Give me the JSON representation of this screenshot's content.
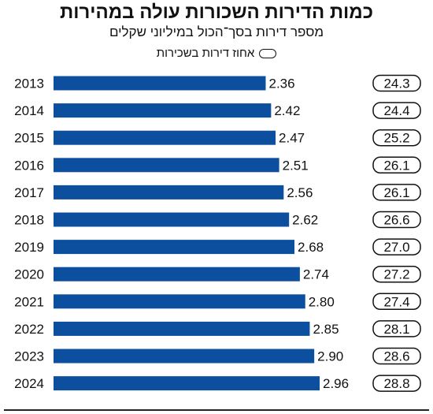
{
  "header": {
    "title": "כמות הדירות השכורות עולה במהירות",
    "subtitle": "מספר דירות בסך־הכול במיליוני שקלים",
    "legend_label": "אחוז דירות בשכירות"
  },
  "colors": {
    "bar": "#0b4f9e",
    "text": "#111111"
  },
  "chart_data": {
    "type": "bar",
    "orientation": "horizontal",
    "title": "כמות הדירות השכורות עולה במהירות",
    "subtitle": "מספר דירות בסך־הכול במיליוני שקלים",
    "categories": [
      "2013",
      "2014",
      "2015",
      "2016",
      "2017",
      "2018",
      "2019",
      "2020",
      "2021",
      "2022",
      "2023",
      "2024"
    ],
    "series": [
      {
        "values": [
          2.36,
          2.42,
          2.47,
          2.51,
          2.56,
          2.62,
          2.68,
          2.74,
          2.8,
          2.85,
          2.9,
          2.96
        ],
        "labels": [
          "2.36",
          "2.42",
          "2.47",
          "2.51",
          "2.56",
          "2.62",
          "2.68",
          "2.74",
          "2.80",
          "2.85",
          "2.90",
          "2.96"
        ]
      },
      {
        "name": "אחוז דירות בשכירות",
        "values": [
          24.3,
          24.4,
          25.2,
          26.1,
          26.1,
          26.6,
          27.0,
          27.2,
          27.4,
          28.1,
          28.6,
          28.8
        ],
        "labels": [
          "24.3",
          "24.4",
          "25.2",
          "26.1",
          "26.1",
          "26.6",
          "27.0",
          "27.2",
          "27.4",
          "28.1",
          "28.6",
          "28.8"
        ]
      }
    ],
    "xlim": [
      0,
      2.96
    ],
    "grid": false,
    "legend_position": "top-center"
  }
}
